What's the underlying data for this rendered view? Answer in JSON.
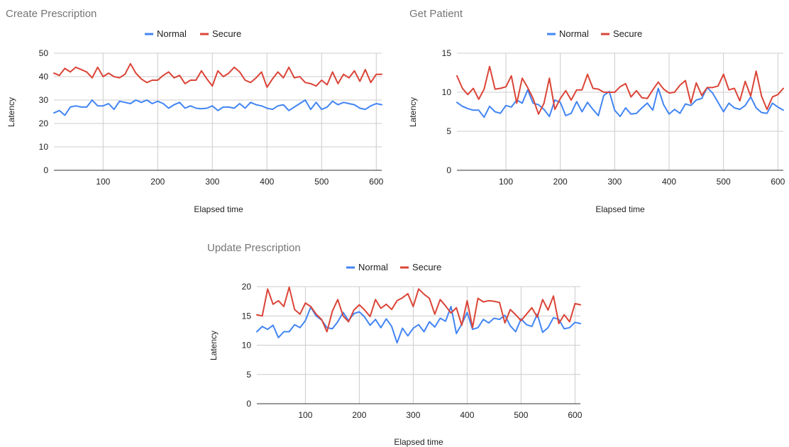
{
  "chart_data": [
    {
      "type": "line",
      "title": "Create Prescription",
      "xlabel": "Elapsed time",
      "ylabel": "Latency",
      "xlim": [
        10,
        610
      ],
      "ylim": [
        0,
        50
      ],
      "xticks": [
        100,
        200,
        300,
        400,
        500,
        600
      ],
      "yticks": [
        0,
        10,
        20,
        30,
        40,
        50
      ],
      "grid": true,
      "legend_position": "top",
      "x": [
        10,
        20,
        30,
        40,
        50,
        60,
        70,
        80,
        90,
        100,
        110,
        120,
        130,
        140,
        150,
        160,
        170,
        180,
        190,
        200,
        210,
        220,
        230,
        240,
        250,
        260,
        270,
        280,
        290,
        300,
        310,
        320,
        330,
        340,
        350,
        360,
        370,
        380,
        390,
        400,
        410,
        420,
        430,
        440,
        450,
        460,
        470,
        480,
        490,
        500,
        510,
        520,
        530,
        540,
        550,
        560,
        570,
        580,
        590,
        600,
        610
      ],
      "series": [
        {
          "name": "Normal",
          "color": "#4285f4",
          "values": [
            24.5,
            25.5,
            23.5,
            27,
            27.5,
            27,
            27,
            30,
            27.5,
            27.5,
            28.5,
            26,
            29.5,
            29,
            28.5,
            30,
            29,
            30,
            28.5,
            29.5,
            28.5,
            26.5,
            28,
            29,
            26.5,
            27.5,
            26.5,
            26.3,
            26.5,
            27.5,
            25.5,
            27,
            27,
            26.5,
            28.5,
            26.5,
            29,
            28,
            27.5,
            26.5,
            26,
            27.5,
            28,
            25.5,
            27,
            28.5,
            30,
            26,
            29,
            26,
            27,
            29.5,
            28,
            29,
            28.5,
            28,
            26.5,
            26,
            27.5,
            28.5,
            28
          ]
        },
        {
          "name": "Secure",
          "color": "#db4437",
          "values": [
            41.5,
            40.5,
            43.5,
            42,
            44,
            43,
            42,
            39.5,
            44,
            40,
            41.5,
            40,
            39.5,
            41,
            45.5,
            41.5,
            39,
            37.5,
            38.5,
            38.5,
            40.5,
            42,
            39.5,
            40.5,
            37,
            38.5,
            38.5,
            42.5,
            39,
            36,
            42.5,
            40,
            41.5,
            44,
            42,
            38.5,
            37.5,
            39.5,
            42,
            35.5,
            39,
            42,
            39.5,
            44,
            39.5,
            40,
            37.5,
            37,
            36,
            38.5,
            36.5,
            42,
            37,
            41,
            39.5,
            42.5,
            38,
            43,
            37.5,
            41,
            41
          ]
        }
      ]
    },
    {
      "type": "line",
      "title": "Get Patient",
      "xlabel": "Elapsed time",
      "ylabel": "Latency",
      "xlim": [
        10,
        610
      ],
      "ylim": [
        0,
        15
      ],
      "xticks": [
        100,
        200,
        300,
        400,
        500,
        600
      ],
      "yticks": [
        0,
        5,
        10,
        15
      ],
      "grid": true,
      "legend_position": "top",
      "x": [
        10,
        20,
        30,
        40,
        50,
        60,
        70,
        80,
        90,
        100,
        110,
        120,
        130,
        140,
        150,
        160,
        170,
        180,
        190,
        200,
        210,
        220,
        230,
        240,
        250,
        260,
        270,
        280,
        290,
        300,
        310,
        320,
        330,
        340,
        350,
        360,
        370,
        380,
        390,
        400,
        410,
        420,
        430,
        440,
        450,
        460,
        470,
        480,
        490,
        500,
        510,
        520,
        530,
        540,
        550,
        560,
        570,
        580,
        590,
        600,
        610
      ],
      "series": [
        {
          "name": "Normal",
          "color": "#4285f4",
          "values": [
            8.7,
            8.2,
            7.9,
            7.7,
            7.7,
            6.8,
            8.2,
            7.5,
            7.3,
            8.3,
            8.1,
            9.0,
            8.6,
            10.3,
            8.6,
            8.4,
            7.8,
            6.9,
            9.0,
            8.7,
            7.0,
            7.3,
            8.8,
            7.5,
            8.7,
            7.8,
            7.0,
            9.6,
            10.1,
            7.7,
            6.9,
            8.0,
            7.2,
            7.3,
            8.0,
            8.6,
            7.7,
            10.5,
            8.4,
            7.2,
            7.8,
            7.3,
            8.5,
            8.3,
            9.0,
            9.2,
            10.6,
            9.9,
            8.7,
            7.5,
            8.6,
            8.0,
            7.8,
            8.3,
            9.4,
            8.0,
            7.4,
            7.3,
            8.6,
            8.1,
            7.7
          ]
        },
        {
          "name": "Secure",
          "color": "#db4437",
          "values": [
            12.1,
            10.5,
            9.7,
            10.5,
            9.1,
            10.4,
            13.3,
            10.4,
            10.5,
            10.7,
            12.1,
            8.6,
            11.8,
            10.6,
            9.2,
            7.2,
            8.6,
            11.8,
            7.8,
            9.2,
            10.2,
            9.0,
            10.3,
            10.3,
            12.3,
            10.5,
            10.4,
            10.0,
            10.0,
            10.0,
            10.7,
            11.1,
            9.4,
            10.2,
            9.3,
            9.2,
            10.3,
            11.3,
            10.4,
            9.9,
            10.0,
            10.9,
            11.5,
            8.6,
            11.2,
            9.6,
            10.6,
            10.6,
            10.8,
            12.3,
            10.3,
            10.5,
            8.9,
            11.4,
            9.5,
            12.7,
            9.5,
            7.8,
            9.4,
            9.7,
            10.5
          ]
        }
      ]
    },
    {
      "type": "line",
      "title": "Update Prescription",
      "xlabel": "Elapsed time",
      "ylabel": "Latency",
      "xlim": [
        10,
        610
      ],
      "ylim": [
        0,
        20
      ],
      "xticks": [
        100,
        200,
        300,
        400,
        500,
        600
      ],
      "yticks": [
        0,
        5,
        10,
        15,
        20
      ],
      "grid": true,
      "legend_position": "top",
      "x": [
        10,
        20,
        30,
        40,
        50,
        60,
        70,
        80,
        90,
        100,
        110,
        120,
        130,
        140,
        150,
        160,
        170,
        180,
        190,
        200,
        210,
        220,
        230,
        240,
        250,
        260,
        270,
        280,
        290,
        300,
        310,
        320,
        330,
        340,
        350,
        360,
        370,
        380,
        390,
        400,
        410,
        420,
        430,
        440,
        450,
        460,
        470,
        480,
        490,
        500,
        510,
        520,
        530,
        540,
        550,
        560,
        570,
        580,
        590,
        600,
        610
      ],
      "series": [
        {
          "name": "Normal",
          "color": "#4285f4",
          "values": [
            12.3,
            13.2,
            12.7,
            13.4,
            11.3,
            12.3,
            12.3,
            13.5,
            13.0,
            14.2,
            16.5,
            15.0,
            14.3,
            13.0,
            12.8,
            14.0,
            15.6,
            14.2,
            15.4,
            15.7,
            14.8,
            13.4,
            14.4,
            13.0,
            14.5,
            13.2,
            10.4,
            12.9,
            11.6,
            12.9,
            13.5,
            12.3,
            14.0,
            13.1,
            14.6,
            14.1,
            16.6,
            12.0,
            13.6,
            15.6,
            12.7,
            13.0,
            14.4,
            13.8,
            14.6,
            14.4,
            15.1,
            13.3,
            12.3,
            14.5,
            13.5,
            13.2,
            15.3,
            12.2,
            13.0,
            14.7,
            14.4,
            12.8,
            13.0,
            13.9,
            13.7
          ]
        },
        {
          "name": "Secure",
          "color": "#db4437",
          "values": [
            15.2,
            15.0,
            19.6,
            17.0,
            17.6,
            16.6,
            19.9,
            16.1,
            15.3,
            17.2,
            16.6,
            15.3,
            14.4,
            12.3,
            15.8,
            17.8,
            15.0,
            14.0,
            16.0,
            16.9,
            16.0,
            14.9,
            17.8,
            16.3,
            17.0,
            16.1,
            17.6,
            18.1,
            18.8,
            16.6,
            19.6,
            18.7,
            18.0,
            15.3,
            17.8,
            16.7,
            15.5,
            16.4,
            13.4,
            17.6,
            13.0,
            18.0,
            17.4,
            17.6,
            17.5,
            17.3,
            13.8,
            16.1,
            15.2,
            14.2,
            15.3,
            16.4,
            14.8,
            17.8,
            16.0,
            18.4,
            13.7,
            15.2,
            14.0,
            17.1,
            16.9
          ]
        }
      ]
    }
  ]
}
